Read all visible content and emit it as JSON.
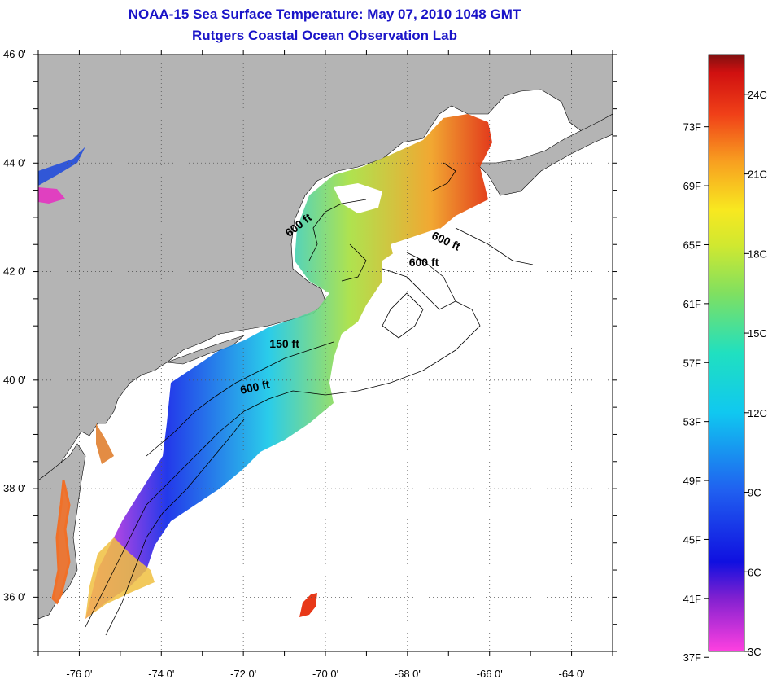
{
  "header": {
    "title": "NOAA-15 Sea Surface Temperature:  May 07, 2010 1048 GMT",
    "subtitle": "Rutgers Coastal Ocean Observation Lab"
  },
  "map": {
    "lon_range": [
      -77,
      -63
    ],
    "lat_range": [
      35,
      46
    ],
    "lon_ticks": [
      {
        "value": -76,
        "label": "-76 0'"
      },
      {
        "value": -74,
        "label": "-74 0'"
      },
      {
        "value": -72,
        "label": "-72 0'"
      },
      {
        "value": -70,
        "label": "-70 0'"
      },
      {
        "value": -68,
        "label": "-68 0'"
      },
      {
        "value": -66,
        "label": "-66 0'"
      },
      {
        "value": -64,
        "label": "-64 0'"
      }
    ],
    "lat_ticks": [
      {
        "value": 46,
        "label": "46 0'"
      },
      {
        "value": 44,
        "label": "44 0'"
      },
      {
        "value": 42,
        "label": "42 0'"
      },
      {
        "value": 40,
        "label": "40 0'"
      },
      {
        "value": 38,
        "label": "38 0'"
      },
      {
        "value": 36,
        "label": "36 0'"
      }
    ],
    "contour_labels": [
      {
        "text": "600 ft",
        "lon": -70.6,
        "lat": 42.8,
        "rotate": -38
      },
      {
        "text": "600 ft",
        "lon": -67.1,
        "lat": 42.5,
        "rotate": 25
      },
      {
        "text": "600 ft",
        "lon": -67.6,
        "lat": 42.1,
        "rotate": 0
      },
      {
        "text": "150 ft",
        "lon": -71.0,
        "lat": 40.6,
        "rotate": 0
      },
      {
        "text": "600 ft",
        "lon": -71.7,
        "lat": 39.8,
        "rotate": -12
      }
    ],
    "colors": {
      "land": "#b4b4b4",
      "cloud": "#ffffff",
      "grid": "#555555"
    }
  },
  "colorbar": {
    "range_c": [
      3,
      25.5
    ],
    "f_labels": [
      "73F",
      "69F",
      "65F",
      "61F",
      "57F",
      "53F",
      "49F",
      "45F",
      "41F",
      "37F"
    ],
    "c_labels": [
      "24C",
      "21C",
      "18C",
      "15C",
      "12C",
      "9C",
      "6C",
      "3C"
    ]
  }
}
